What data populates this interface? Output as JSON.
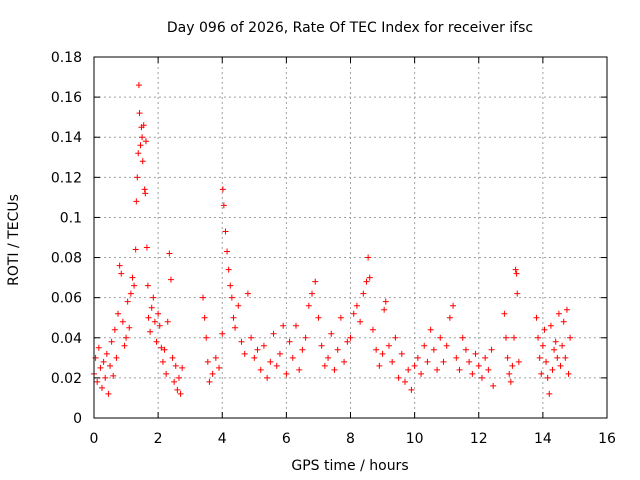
{
  "chart_data": {
    "type": "scatter",
    "title": "Day 096 of 2026, Rate Of TEC Index for receiver ifsc",
    "xlabel": "GPS time / hours",
    "ylabel": "ROTI / TECUs",
    "xlim": [
      0,
      16
    ],
    "ylim": [
      0,
      0.18
    ],
    "xticks": [
      "0",
      "2",
      "4",
      "6",
      "8",
      "10",
      "12",
      "14",
      "16"
    ],
    "yticks": [
      "0",
      "0.02",
      "0.04",
      "0.06",
      "0.08",
      "0.1",
      "0.12",
      "0.14",
      "0.16",
      "0.18"
    ],
    "grid": true,
    "marker": "+",
    "color": "#ff0000",
    "series": [
      {
        "name": "ROTI",
        "points": [
          [
            0.0,
            0.022
          ],
          [
            0.05,
            0.03
          ],
          [
            0.1,
            0.018
          ],
          [
            0.15,
            0.035
          ],
          [
            0.2,
            0.025
          ],
          [
            0.25,
            0.015
          ],
          [
            0.3,
            0.028
          ],
          [
            0.35,
            0.02
          ],
          [
            0.4,
            0.032
          ],
          [
            0.45,
            0.012
          ],
          [
            0.5,
            0.026
          ],
          [
            0.55,
            0.038
          ],
          [
            0.6,
            0.021
          ],
          [
            0.65,
            0.044
          ],
          [
            0.7,
            0.03
          ],
          [
            0.75,
            0.052
          ],
          [
            0.8,
            0.076
          ],
          [
            0.85,
            0.072
          ],
          [
            0.9,
            0.048
          ],
          [
            0.95,
            0.036
          ],
          [
            1.0,
            0.04
          ],
          [
            1.05,
            0.058
          ],
          [
            1.1,
            0.045
          ],
          [
            1.15,
            0.062
          ],
          [
            1.2,
            0.07
          ],
          [
            1.25,
            0.066
          ],
          [
            1.3,
            0.084
          ],
          [
            1.32,
            0.108
          ],
          [
            1.35,
            0.12
          ],
          [
            1.38,
            0.132
          ],
          [
            1.4,
            0.166
          ],
          [
            1.42,
            0.152
          ],
          [
            1.45,
            0.136
          ],
          [
            1.48,
            0.145
          ],
          [
            1.5,
            0.14
          ],
          [
            1.52,
            0.128
          ],
          [
            1.55,
            0.146
          ],
          [
            1.58,
            0.114
          ],
          [
            1.6,
            0.112
          ],
          [
            1.62,
            0.138
          ],
          [
            1.65,
            0.085
          ],
          [
            1.68,
            0.066
          ],
          [
            1.7,
            0.05
          ],
          [
            1.75,
            0.043
          ],
          [
            1.8,
            0.055
          ],
          [
            1.85,
            0.06
          ],
          [
            1.9,
            0.048
          ],
          [
            1.95,
            0.038
          ],
          [
            2.0,
            0.052
          ],
          [
            2.05,
            0.046
          ],
          [
            2.1,
            0.035
          ],
          [
            2.15,
            0.028
          ],
          [
            2.2,
            0.034
          ],
          [
            2.25,
            0.022
          ],
          [
            2.3,
            0.048
          ],
          [
            2.35,
            0.082
          ],
          [
            2.4,
            0.069
          ],
          [
            2.45,
            0.03
          ],
          [
            2.5,
            0.018
          ],
          [
            2.55,
            0.026
          ],
          [
            2.6,
            0.014
          ],
          [
            2.65,
            0.02
          ],
          [
            2.7,
            0.012
          ],
          [
            2.75,
            0.025
          ],
          [
            3.4,
            0.06
          ],
          [
            3.45,
            0.05
          ],
          [
            3.5,
            0.04
          ],
          [
            3.55,
            0.028
          ],
          [
            3.6,
            0.018
          ],
          [
            3.7,
            0.022
          ],
          [
            3.8,
            0.03
          ],
          [
            3.9,
            0.025
          ],
          [
            4.0,
            0.042
          ],
          [
            4.02,
            0.114
          ],
          [
            4.05,
            0.106
          ],
          [
            4.1,
            0.093
          ],
          [
            4.15,
            0.083
          ],
          [
            4.2,
            0.074
          ],
          [
            4.25,
            0.066
          ],
          [
            4.3,
            0.06
          ],
          [
            4.35,
            0.05
          ],
          [
            4.4,
            0.045
          ],
          [
            4.5,
            0.056
          ],
          [
            4.6,
            0.038
          ],
          [
            4.7,
            0.032
          ],
          [
            4.8,
            0.062
          ],
          [
            4.9,
            0.04
          ],
          [
            5.0,
            0.03
          ],
          [
            5.1,
            0.034
          ],
          [
            5.2,
            0.024
          ],
          [
            5.3,
            0.036
          ],
          [
            5.4,
            0.02
          ],
          [
            5.5,
            0.028
          ],
          [
            5.6,
            0.042
          ],
          [
            5.7,
            0.026
          ],
          [
            5.8,
            0.032
          ],
          [
            5.9,
            0.046
          ],
          [
            6.0,
            0.022
          ],
          [
            6.1,
            0.038
          ],
          [
            6.2,
            0.03
          ],
          [
            6.3,
            0.046
          ],
          [
            6.4,
            0.024
          ],
          [
            6.5,
            0.034
          ],
          [
            6.6,
            0.04
          ],
          [
            6.7,
            0.056
          ],
          [
            6.8,
            0.062
          ],
          [
            6.9,
            0.068
          ],
          [
            7.0,
            0.05
          ],
          [
            7.1,
            0.036
          ],
          [
            7.2,
            0.026
          ],
          [
            7.3,
            0.03
          ],
          [
            7.4,
            0.042
          ],
          [
            7.5,
            0.024
          ],
          [
            7.6,
            0.034
          ],
          [
            7.7,
            0.05
          ],
          [
            7.8,
            0.028
          ],
          [
            7.9,
            0.038
          ],
          [
            8.0,
            0.04
          ],
          [
            8.1,
            0.052
          ],
          [
            8.2,
            0.056
          ],
          [
            8.3,
            0.048
          ],
          [
            8.4,
            0.062
          ],
          [
            8.5,
            0.068
          ],
          [
            8.55,
            0.08
          ],
          [
            8.6,
            0.07
          ],
          [
            8.7,
            0.044
          ],
          [
            8.8,
            0.034
          ],
          [
            8.9,
            0.026
          ],
          [
            9.0,
            0.032
          ],
          [
            9.05,
            0.054
          ],
          [
            9.1,
            0.058
          ],
          [
            9.2,
            0.036
          ],
          [
            9.3,
            0.028
          ],
          [
            9.4,
            0.04
          ],
          [
            9.5,
            0.02
          ],
          [
            9.6,
            0.032
          ],
          [
            9.7,
            0.018
          ],
          [
            9.8,
            0.024
          ],
          [
            9.9,
            0.014
          ],
          [
            10.0,
            0.026
          ],
          [
            10.1,
            0.03
          ],
          [
            10.2,
            0.022
          ],
          [
            10.3,
            0.036
          ],
          [
            10.4,
            0.028
          ],
          [
            10.5,
            0.044
          ],
          [
            10.6,
            0.034
          ],
          [
            10.7,
            0.024
          ],
          [
            10.8,
            0.04
          ],
          [
            10.9,
            0.028
          ],
          [
            11.0,
            0.036
          ],
          [
            11.1,
            0.05
          ],
          [
            11.2,
            0.056
          ],
          [
            11.3,
            0.03
          ],
          [
            11.4,
            0.024
          ],
          [
            11.5,
            0.04
          ],
          [
            11.6,
            0.034
          ],
          [
            11.7,
            0.028
          ],
          [
            11.8,
            0.022
          ],
          [
            11.9,
            0.032
          ],
          [
            12.0,
            0.026
          ],
          [
            12.1,
            0.02
          ],
          [
            12.2,
            0.03
          ],
          [
            12.3,
            0.024
          ],
          [
            12.4,
            0.034
          ],
          [
            12.45,
            0.016
          ],
          [
            12.8,
            0.052
          ],
          [
            12.85,
            0.04
          ],
          [
            12.9,
            0.03
          ],
          [
            12.95,
            0.022
          ],
          [
            13.0,
            0.018
          ],
          [
            13.05,
            0.026
          ],
          [
            13.1,
            0.04
          ],
          [
            13.15,
            0.074
          ],
          [
            13.18,
            0.072
          ],
          [
            13.2,
            0.062
          ],
          [
            13.25,
            0.028
          ],
          [
            13.8,
            0.05
          ],
          [
            13.85,
            0.04
          ],
          [
            13.9,
            0.03
          ],
          [
            13.95,
            0.022
          ],
          [
            14.0,
            0.036
          ],
          [
            14.05,
            0.044
          ],
          [
            14.1,
            0.028
          ],
          [
            14.15,
            0.02
          ],
          [
            14.2,
            0.012
          ],
          [
            14.25,
            0.046
          ],
          [
            14.3,
            0.024
          ],
          [
            14.35,
            0.034
          ],
          [
            14.4,
            0.038
          ],
          [
            14.45,
            0.03
          ],
          [
            14.5,
            0.052
          ],
          [
            14.55,
            0.026
          ],
          [
            14.6,
            0.036
          ],
          [
            14.65,
            0.048
          ],
          [
            14.7,
            0.03
          ],
          [
            14.75,
            0.054
          ],
          [
            14.8,
            0.022
          ],
          [
            14.85,
            0.04
          ]
        ]
      }
    ]
  }
}
